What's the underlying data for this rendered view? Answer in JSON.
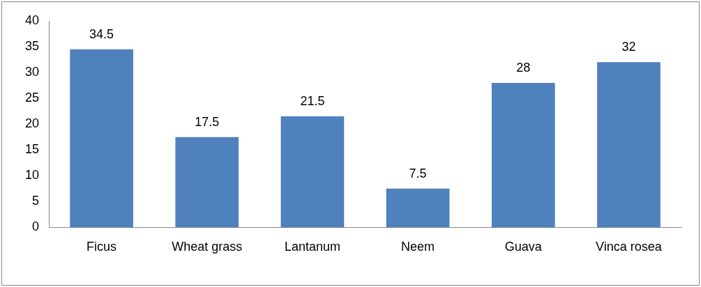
{
  "chart_data": {
    "type": "bar",
    "categories": [
      "Ficus",
      "Wheat grass",
      "Lantanum",
      "Neem",
      "Guava",
      "Vinca rosea"
    ],
    "values": [
      34.5,
      17.5,
      21.5,
      7.5,
      28,
      32
    ],
    "color": "#4f81bd",
    "ylim": [
      0,
      40
    ],
    "yticks": [
      0,
      5,
      10,
      15,
      20,
      25,
      30,
      35,
      40
    ],
    "grid": false,
    "legend": false,
    "data_labels": true
  }
}
